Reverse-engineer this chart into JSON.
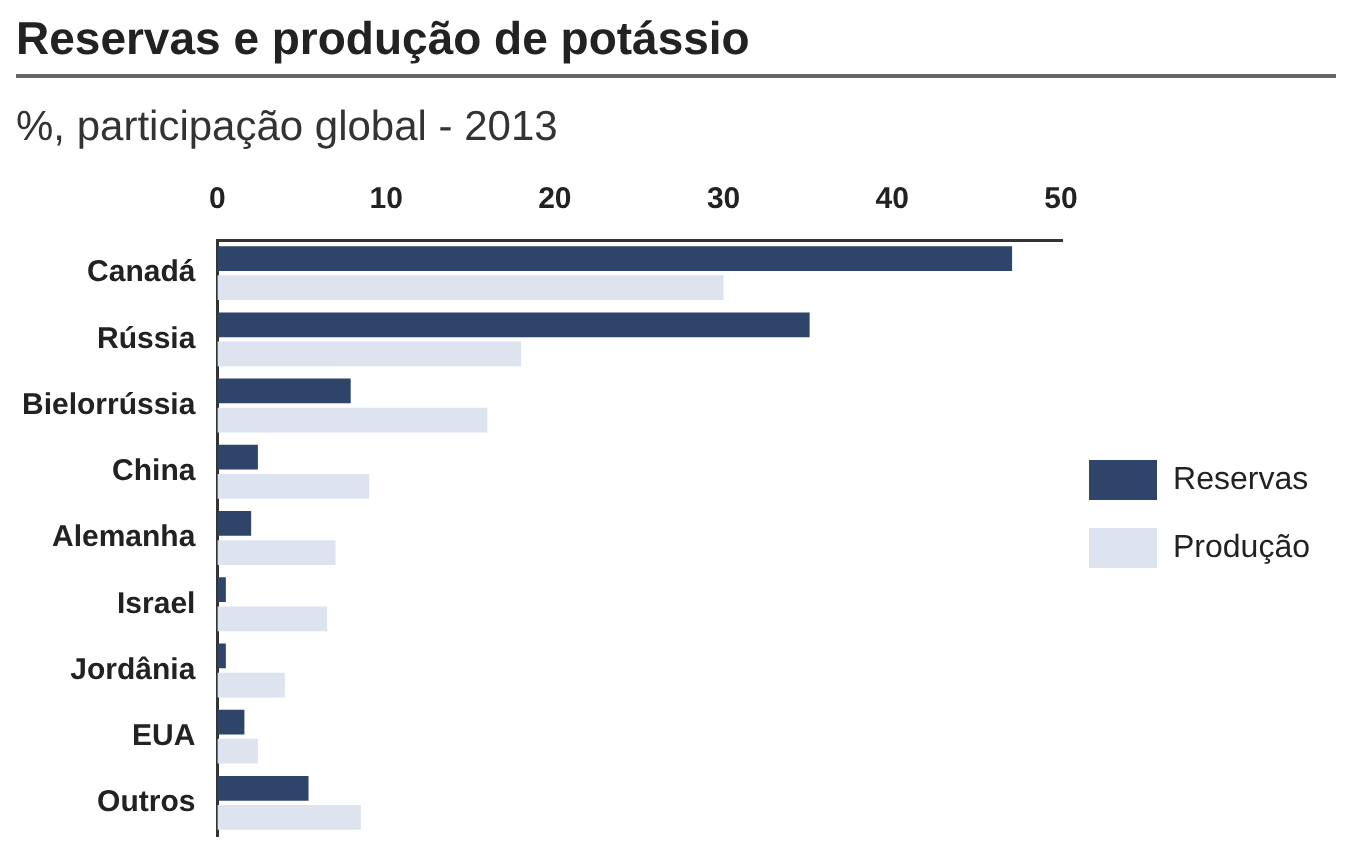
{
  "chart_data": {
    "type": "bar",
    "orientation": "horizontal",
    "title": "Reservas e produção de potássio",
    "subtitle": "%, participação global - 2013",
    "categories": [
      "Canadá",
      "Rússia",
      "Bielorrússia",
      "China",
      "Alemanha",
      "Israel",
      "Jordânia",
      "EUA",
      "Outros"
    ],
    "series": [
      {
        "name": "Reservas",
        "color": "#2e4468",
        "values": [
          47.1,
          35.1,
          7.9,
          2.4,
          2.0,
          0.5,
          0.5,
          1.6,
          5.4
        ]
      },
      {
        "name": "Produção",
        "color": "#dde3ef",
        "values": [
          30.0,
          18.0,
          16.0,
          9.0,
          7.0,
          6.5,
          4.0,
          2.4,
          8.5
        ]
      }
    ],
    "xlim": [
      0,
      50
    ],
    "xticks": [
      0,
      10,
      20,
      30,
      40,
      50
    ],
    "grid": false,
    "legend": "right"
  }
}
